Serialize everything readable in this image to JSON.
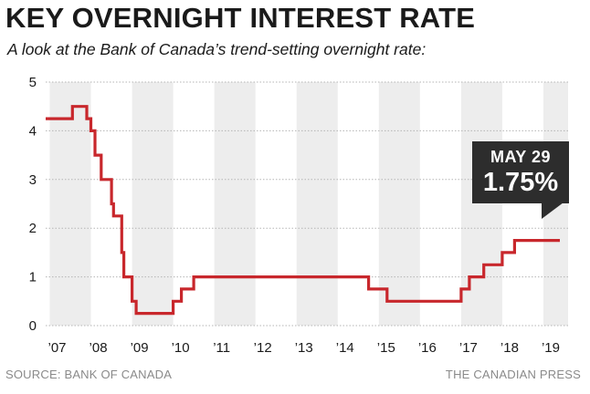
{
  "title": "KEY OVERNIGHT INTEREST RATE",
  "subtitle": "A look at the Bank of Canada’s trend-setting overnight rate:",
  "source": "SOURCE: BANK OF CANADA",
  "credit": "THE CANADIAN PRESS",
  "callout": {
    "date": "MAY 29",
    "value": "1.75%"
  },
  "colors": {
    "line": "#c8272c",
    "band": "#ededed",
    "callout": "#2d2d2d"
  },
  "chart_data": {
    "type": "line",
    "step": true,
    "grid": true,
    "xlabel": "",
    "ylabel": "",
    "ylim": [
      0,
      5
    ],
    "xlim": [
      2006.9,
      2019.6
    ],
    "yticks": [
      0,
      1,
      2,
      3,
      4,
      5
    ],
    "xtick_labels": [
      "’07",
      "’08",
      "’09",
      "’10",
      "’11",
      "’12",
      "’13",
      "’14",
      "’15",
      "’16",
      "’17",
      "’18",
      "’19"
    ],
    "xtick_values": [
      2007,
      2008,
      2009,
      2010,
      2011,
      2012,
      2013,
      2014,
      2015,
      2016,
      2017,
      2018,
      2019
    ],
    "series": [
      {
        "x": [
          2006.9,
          2007.55,
          2007.9,
          2008.0,
          2008.1,
          2008.25,
          2008.5,
          2008.55,
          2008.75,
          2008.8,
          2009.0,
          2009.1,
          2010.0,
          2010.2,
          2010.5,
          2014.75,
          2015.2,
          2016.7,
          2017.0,
          2017.2,
          2017.55,
          2018.0,
          2018.3,
          2019.4
        ],
        "y": [
          4.25,
          4.5,
          4.25,
          4.0,
          3.5,
          3.0,
          2.5,
          2.25,
          1.5,
          1.0,
          0.5,
          0.25,
          0.5,
          0.75,
          1.0,
          0.75,
          0.5,
          0.5,
          0.75,
          1.0,
          1.25,
          1.5,
          1.75,
          1.75
        ]
      }
    ]
  }
}
